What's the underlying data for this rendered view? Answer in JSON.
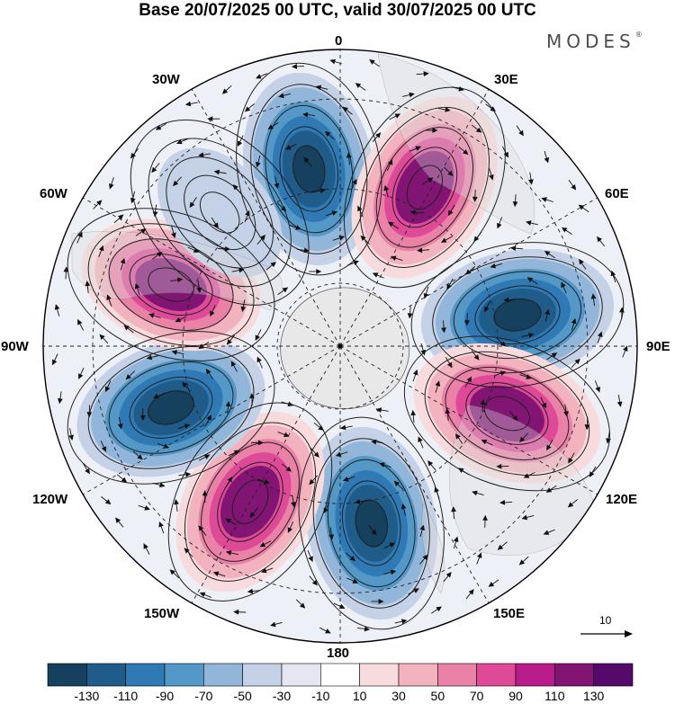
{
  "title": "Base 20/07/2025 00 UTC, valid 30/07/2025 00 UTC",
  "brand": {
    "name": "MODES",
    "mark": "®"
  },
  "meridian_labels": {
    "m0": "0",
    "m30e": "30E",
    "m60e": "60E",
    "m90e": "90E",
    "m120e": "120E",
    "m150e": "150E",
    "m180": "180",
    "m150w": "150W",
    "m120w": "120W",
    "m90w": "90W",
    "m60w": "60W",
    "m30w": "30W"
  },
  "reference_vector": {
    "label": "10"
  },
  "colorbar": {
    "colors": [
      "#15405e",
      "#1f5c8a",
      "#2f79b5",
      "#5498c7",
      "#92b6d9",
      "#c4d1e6",
      "#e6e6f2",
      "#ffffff",
      "#f8dcdd",
      "#f3b3be",
      "#ea82a8",
      "#de4a97",
      "#b81c8a",
      "#821474",
      "#54096b"
    ],
    "labels": [
      "-130",
      "-110",
      "-90",
      "-70",
      "-50",
      "-30",
      "-10",
      "10",
      "30",
      "50",
      "70",
      "90",
      "110",
      "130"
    ]
  },
  "map_data": {
    "projection": "south polar stereographic",
    "field_description": "filled anomaly contours with wind vectors",
    "anomaly_centers": [
      {
        "lon_deg": 350,
        "sign": "negative",
        "value": -140
      },
      {
        "lon_deg": 28,
        "sign": "positive",
        "value": 135
      },
      {
        "lon_deg": 80,
        "sign": "negative",
        "value": -140
      },
      {
        "lon_deg": 112,
        "sign": "positive",
        "value": 135
      },
      {
        "lon_deg": 170,
        "sign": "negative",
        "value": -135
      },
      {
        "lon_deg": 210,
        "sign": "positive",
        "value": 135
      },
      {
        "lon_deg": 250,
        "sign": "negative",
        "value": -140
      },
      {
        "lon_deg": 290,
        "sign": "positive",
        "value": 110
      },
      {
        "lon_deg": 318,
        "sign": "negative",
        "value": -30
      }
    ]
  }
}
